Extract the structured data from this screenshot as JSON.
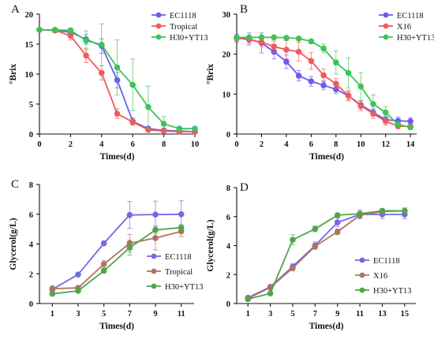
{
  "figure": {
    "background": "#ffffff"
  },
  "chart_data": [
    {
      "panel_label": "A",
      "type": "line",
      "xlabel": "Times(d)",
      "ylabel": "°Brix",
      "xlim": [
        0,
        10
      ],
      "ylim": [
        0,
        20
      ],
      "xticks": [
        0,
        2,
        4,
        6,
        8,
        10
      ],
      "yticks": [
        0,
        5,
        10,
        15,
        20
      ],
      "legend_position": "top-right",
      "series": [
        {
          "name": "EC1118",
          "color": "#6a5cf0",
          "x": [
            0,
            1,
            2,
            3,
            4,
            5,
            6,
            7,
            8,
            9,
            10
          ],
          "y": [
            17.4,
            17.3,
            17.0,
            15.8,
            14.7,
            9.0,
            2.1,
            0.9,
            0.6,
            0.5,
            0.4
          ],
          "err": [
            0.3,
            0.3,
            0.5,
            0.8,
            1.2,
            1.3,
            0.6,
            0.3,
            0.2,
            0.2,
            0.2
          ]
        },
        {
          "name": "Tropical",
          "color": "#f05a5a",
          "x": [
            0,
            1,
            2,
            3,
            4,
            5,
            6,
            7,
            8,
            9,
            10
          ],
          "y": [
            17.4,
            17.3,
            16.4,
            13.1,
            10.2,
            3.4,
            2.0,
            0.7,
            0.5,
            0.4,
            0.4
          ],
          "err": [
            0.3,
            0.4,
            0.7,
            1.2,
            1.2,
            0.8,
            0.5,
            0.2,
            0.2,
            0.1,
            0.1
          ]
        },
        {
          "name": "H30+YT13",
          "color": "#3cc45a",
          "x": [
            0,
            1,
            2,
            3,
            4,
            5,
            6,
            7,
            8,
            9,
            10
          ],
          "y": [
            17.4,
            17.4,
            17.3,
            15.6,
            14.9,
            11.1,
            8.2,
            4.5,
            1.7,
            0.9,
            0.9
          ],
          "err": [
            0.3,
            0.3,
            0.4,
            1.6,
            3.5,
            4.6,
            4.3,
            3.5,
            1.2,
            0.4,
            0.3
          ]
        }
      ]
    },
    {
      "panel_label": "B",
      "type": "line",
      "xlabel": "Times(d)",
      "ylabel": "°Brix",
      "xlim": [
        0,
        14.5
      ],
      "ylim": [
        0,
        30
      ],
      "xticks": [
        0,
        2,
        4,
        6,
        8,
        10,
        12,
        14
      ],
      "yticks": [
        0,
        10,
        20,
        30
      ],
      "legend_position": "top-right",
      "series": [
        {
          "name": "EC1118",
          "color": "#6a5cf0",
          "x": [
            0,
            1,
            2,
            3,
            4,
            5,
            6,
            7,
            8,
            9,
            10,
            11,
            12,
            13,
            14
          ],
          "y": [
            24.0,
            23.8,
            22.8,
            20.6,
            18.1,
            14.6,
            13.2,
            12.2,
            11.2,
            9.6,
            7.3,
            5.4,
            3.6,
            3.3,
            3.2
          ],
          "err": [
            1.0,
            1.5,
            2.5,
            1.8,
            1.7,
            1.3,
            1.2,
            1.1,
            1.0,
            1.0,
            1.0,
            0.9,
            0.8,
            0.9,
            0.9
          ]
        },
        {
          "name": "X16",
          "color": "#f05a5a",
          "x": [
            0,
            1,
            2,
            3,
            4,
            5,
            6,
            7,
            8,
            9,
            10,
            11,
            12,
            13,
            14
          ],
          "y": [
            24.0,
            23.6,
            23.0,
            21.9,
            21.1,
            20.6,
            18.3,
            14.7,
            12.6,
            9.6,
            7.1,
            5.1,
            3.2,
            2.0,
            1.9
          ],
          "err": [
            0.7,
            0.9,
            1.2,
            1.4,
            2.3,
            2.4,
            2.1,
            1.6,
            1.3,
            1.3,
            1.3,
            1.2,
            1.0,
            0.7,
            0.6
          ]
        },
        {
          "name": "H30+YT13",
          "color": "#3cc45a",
          "x": [
            0,
            1,
            2,
            3,
            4,
            5,
            6,
            7,
            8,
            9,
            10,
            11,
            12,
            13,
            14
          ],
          "y": [
            24.2,
            24.2,
            24.2,
            24.2,
            24.1,
            23.9,
            23.2,
            21.4,
            17.9,
            15.3,
            11.9,
            7.5,
            5.4,
            2.4,
            1.7
          ],
          "err": [
            0.4,
            0.4,
            0.4,
            0.3,
            0.3,
            0.3,
            0.5,
            1.1,
            2.9,
            3.8,
            3.5,
            2.3,
            1.5,
            0.7,
            0.5
          ]
        }
      ]
    },
    {
      "panel_label": "C",
      "type": "line",
      "xlabel": "Times(d)",
      "ylabel": "Glycerol(g/L)",
      "xlim": [
        0,
        12
      ],
      "ylim": [
        0,
        8
      ],
      "xticks": [
        1,
        3,
        5,
        7,
        9,
        11
      ],
      "yticks": [
        0,
        2,
        4,
        6,
        8
      ],
      "legend_position": "bottom-right",
      "series": [
        {
          "name": "EC1118",
          "color": "#7667e6",
          "x": [
            1,
            3,
            5,
            7,
            9,
            11
          ],
          "y": [
            0.95,
            1.95,
            4.05,
            5.95,
            5.98,
            6.0
          ],
          "err": [
            0.12,
            0.08,
            0.1,
            0.9,
            0.9,
            0.9
          ]
        },
        {
          "name": "Tropical",
          "color": "#b07260",
          "x": [
            1,
            3,
            5,
            7,
            9,
            11
          ],
          "y": [
            1.0,
            1.05,
            2.65,
            4.05,
            4.4,
            4.85
          ],
          "err": [
            0.2,
            0.15,
            0.25,
            0.6,
            0.8,
            0.35
          ]
        },
        {
          "name": "H30+YT13",
          "color": "#4ea648",
          "x": [
            1,
            3,
            5,
            7,
            9,
            11
          ],
          "y": [
            0.65,
            0.85,
            2.2,
            3.75,
            4.95,
            5.1
          ],
          "err": [
            0.1,
            0.1,
            0.15,
            0.5,
            0.25,
            0.2
          ]
        }
      ]
    },
    {
      "panel_label": "D",
      "type": "line",
      "xlabel": "Times(d)",
      "ylabel": "Glycerol(g/L)",
      "xlim": [
        0,
        16
      ],
      "ylim": [
        0,
        8
      ],
      "xticks": [
        1,
        3,
        5,
        7,
        9,
        11,
        13,
        15
      ],
      "yticks": [
        0,
        2,
        4,
        6,
        8
      ],
      "legend_position": "bottom-right",
      "series": [
        {
          "name": "EC1118",
          "color": "#7667e6",
          "x": [
            1,
            3,
            5,
            7,
            9,
            11,
            13,
            15
          ],
          "y": [
            0.4,
            1.15,
            2.55,
            4.0,
            5.6,
            6.15,
            6.15,
            6.15
          ],
          "err": [
            0.08,
            0.1,
            0.2,
            0.25,
            0.3,
            0.3,
            0.3,
            0.3
          ]
        },
        {
          "name": "X16",
          "color": "#b07260",
          "x": [
            1,
            3,
            5,
            7,
            9,
            11,
            13,
            15
          ],
          "y": [
            0.35,
            1.1,
            2.45,
            3.95,
            4.95,
            6.1,
            6.35,
            6.4
          ],
          "err": [
            0.08,
            0.1,
            0.2,
            0.2,
            0.2,
            0.2,
            0.2,
            0.2
          ]
        },
        {
          "name": "H30+YT13",
          "color": "#4ea648",
          "x": [
            1,
            3,
            5,
            7,
            9,
            11,
            13,
            15
          ],
          "y": [
            0.3,
            0.7,
            4.4,
            5.15,
            6.1,
            6.2,
            6.4,
            6.4
          ],
          "err": [
            0.05,
            0.1,
            0.35,
            0.2,
            0.15,
            0.15,
            0.1,
            0.1
          ]
        }
      ]
    }
  ]
}
